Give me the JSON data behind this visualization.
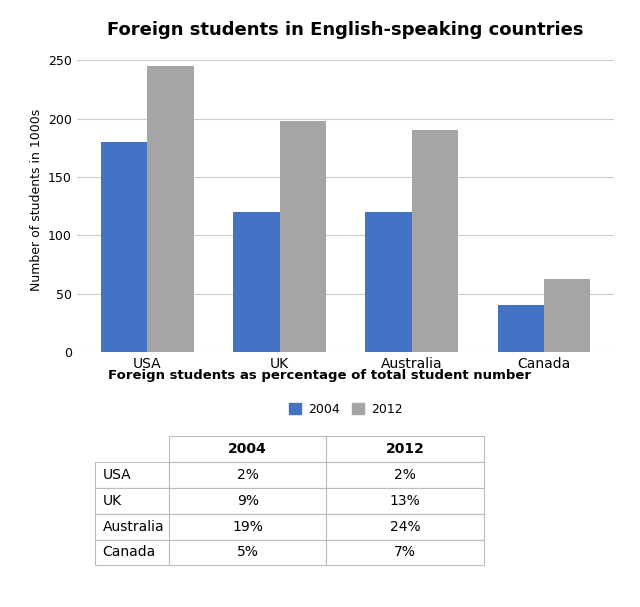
{
  "title": "Foreign students in English-speaking countries",
  "categories": [
    "USA",
    "UK",
    "Australia",
    "Canada"
  ],
  "values_2004": [
    180,
    120,
    120,
    40
  ],
  "values_2012": [
    245,
    198,
    190,
    63
  ],
  "color_2004": "#4472C4",
  "color_2012": "#A5A5A5",
  "ylabel": "Number of students in 1000s",
  "ylim": [
    0,
    260
  ],
  "yticks": [
    0,
    50,
    100,
    150,
    200,
    250
  ],
  "legend_labels": [
    "2004",
    "2012"
  ],
  "table_title": "Foreign students as percentage of total student number",
  "table_headers": [
    "",
    "2004",
    "2012"
  ],
  "table_rows": [
    [
      "USA",
      "2%",
      "2%"
    ],
    [
      "UK",
      "9%",
      "13%"
    ],
    [
      "Australia",
      "19%",
      "24%"
    ],
    [
      "Canada",
      "5%",
      "7%"
    ]
  ],
  "bar_width": 0.35,
  "background_color": "#ffffff"
}
